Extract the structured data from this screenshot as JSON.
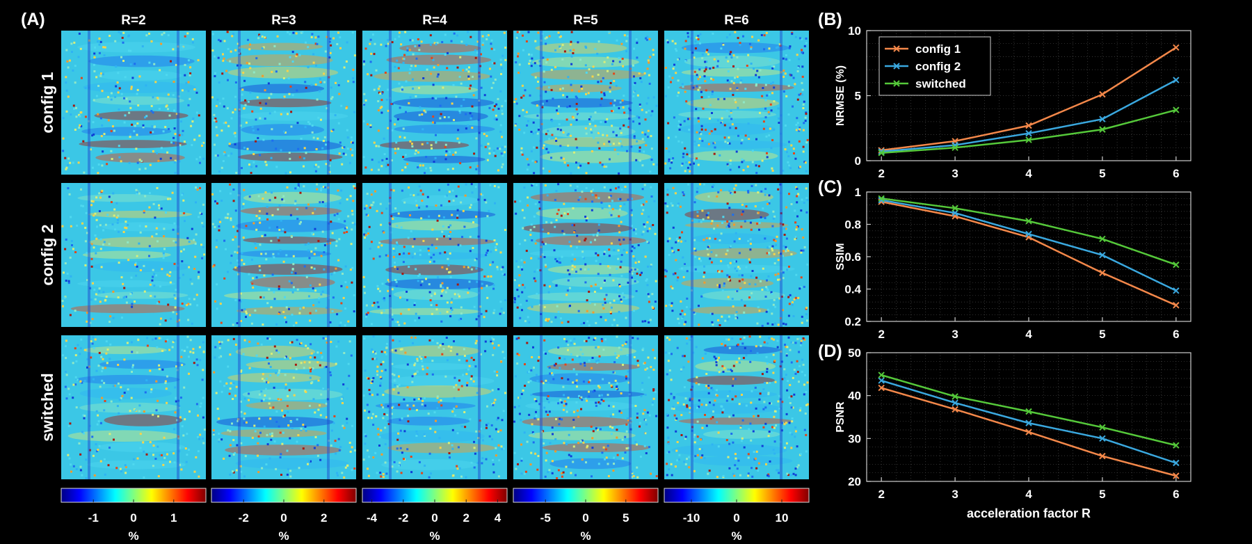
{
  "panel_labels": {
    "a": "(A)",
    "b": "(B)",
    "c": "(C)",
    "d": "(D)"
  },
  "colors": {
    "background": "#000000",
    "config1": "#f4884a",
    "config2": "#3aa8df",
    "switched": "#55c93a",
    "grid": "#4a4a4a"
  },
  "maps": {
    "columns": [
      "R=2",
      "R=3",
      "R=4",
      "R=5",
      "R=6"
    ],
    "rows": [
      "config 1",
      "config 2",
      "switched"
    ],
    "colormap": "jet",
    "colorbars": [
      {
        "ticks": [
          "-1",
          "0",
          "1"
        ],
        "tick_values": [
          -1,
          0,
          1
        ],
        "range": [
          -1.8,
          1.8
        ],
        "unit": "%"
      },
      {
        "ticks": [
          "-2",
          "0",
          "2"
        ],
        "tick_values": [
          -2,
          0,
          2
        ],
        "range": [
          -3.6,
          3.6
        ],
        "unit": "%"
      },
      {
        "ticks": [
          "-4",
          "-2",
          "0",
          "2",
          "4"
        ],
        "tick_values": [
          -4,
          -2,
          0,
          2,
          4
        ],
        "range": [
          -4.6,
          4.6
        ],
        "unit": "%"
      },
      {
        "ticks": [
          "-5",
          "0",
          "5"
        ],
        "tick_values": [
          -5,
          0,
          5
        ],
        "range": [
          -9,
          9
        ],
        "unit": "%"
      },
      {
        "ticks": [
          "-10",
          "0",
          "10"
        ],
        "tick_values": [
          -10,
          0,
          10
        ],
        "range": [
          -16,
          16
        ],
        "unit": "%"
      }
    ]
  },
  "chart_data": [
    {
      "type": "line",
      "panel": "(B)",
      "x": [
        2,
        3,
        4,
        5,
        6
      ],
      "xticks": [
        "2",
        "3",
        "4",
        "5",
        "6"
      ],
      "xlim": [
        1.8,
        6.2
      ],
      "ylabel": "NRMSE (%)",
      "ylim": [
        0,
        10
      ],
      "yticks": [
        "0",
        "5",
        "10"
      ],
      "grid": true,
      "legend": "top-left",
      "series": [
        {
          "name": "config 1",
          "values": [
            0.8,
            1.5,
            2.7,
            5.1,
            8.7
          ]
        },
        {
          "name": "config 2",
          "values": [
            0.7,
            1.2,
            2.1,
            3.2,
            6.2
          ]
        },
        {
          "name": "switched",
          "values": [
            0.6,
            1.0,
            1.6,
            2.4,
            3.9
          ]
        }
      ]
    },
    {
      "type": "line",
      "panel": "(C)",
      "x": [
        2,
        3,
        4,
        5,
        6
      ],
      "xticks": [
        "2",
        "3",
        "4",
        "5",
        "6"
      ],
      "xlim": [
        1.8,
        6.2
      ],
      "ylabel": "SSIM",
      "ylim": [
        0.2,
        1
      ],
      "yticks": [
        "0.2",
        "0.4",
        "0.6",
        "0.8",
        "1"
      ],
      "grid": true,
      "series": [
        {
          "name": "config 1",
          "values": [
            0.94,
            0.85,
            0.72,
            0.5,
            0.3
          ]
        },
        {
          "name": "config 2",
          "values": [
            0.95,
            0.87,
            0.74,
            0.61,
            0.39
          ]
        },
        {
          "name": "switched",
          "values": [
            0.96,
            0.9,
            0.82,
            0.71,
            0.55
          ]
        }
      ]
    },
    {
      "type": "line",
      "panel": "(D)",
      "x": [
        2,
        3,
        4,
        5,
        6
      ],
      "xticks": [
        "2",
        "3",
        "4",
        "5",
        "6"
      ],
      "xlim": [
        1.8,
        6.2
      ],
      "xlabel": "acceleration factor R",
      "ylabel": "PSNR",
      "ylim": [
        20,
        50
      ],
      "yticks": [
        "20",
        "30",
        "40",
        "50"
      ],
      "grid": true,
      "series": [
        {
          "name": "config 1",
          "values": [
            41.8,
            36.8,
            31.5,
            25.9,
            21.3
          ]
        },
        {
          "name": "config 2",
          "values": [
            43.5,
            38.3,
            33.6,
            30.0,
            24.3
          ]
        },
        {
          "name": "switched",
          "values": [
            44.8,
            39.8,
            36.3,
            32.6,
            28.4
          ]
        }
      ]
    }
  ]
}
